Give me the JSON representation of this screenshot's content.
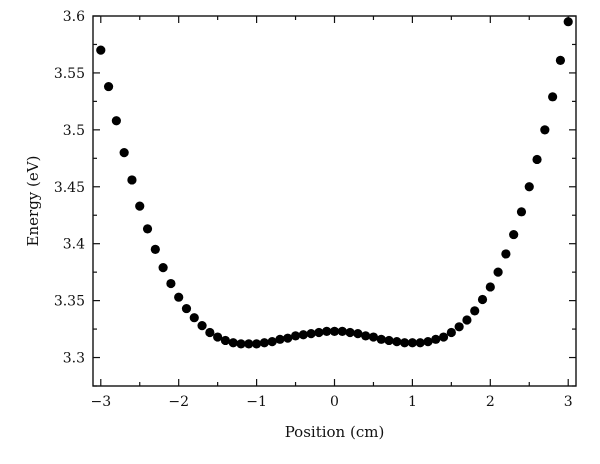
{
  "chart_data": {
    "type": "scatter",
    "xlabel": "Position (cm)",
    "ylabel": "Energy (eV)",
    "xlim": [
      -3.1,
      3.1
    ],
    "ylim": [
      3.275,
      3.6
    ],
    "x_ticks": [
      -3,
      -2,
      -1,
      0,
      1,
      2,
      3
    ],
    "x_tick_labels": [
      "−3",
      "−2",
      "−1",
      "0",
      "1",
      "2",
      "3"
    ],
    "y_ticks": [
      3.3,
      3.35,
      3.4,
      3.45,
      3.5,
      3.55,
      3.6
    ],
    "y_tick_labels": [
      "3.3",
      "3.35",
      "3.4",
      "3.45",
      "3.5",
      "3.55",
      "3.6"
    ],
    "marker_color": "#000000",
    "grid": false,
    "series": [
      {
        "x": [
          -3.0,
          -2.9,
          -2.8,
          -2.7,
          -2.6,
          -2.5,
          -2.4,
          -2.3,
          -2.2,
          -2.1,
          -2.0,
          -1.9,
          -1.8,
          -1.7,
          -1.6,
          -1.5,
          -1.4,
          -1.3,
          -1.2,
          -1.1,
          -1.0,
          -0.9,
          -0.8,
          -0.7,
          -0.6,
          -0.5,
          -0.4,
          -0.3,
          -0.2,
          -0.1,
          0.0,
          0.1,
          0.2,
          0.3,
          0.4,
          0.5,
          0.6,
          0.7,
          0.8,
          0.9,
          1.0,
          1.1,
          1.2,
          1.3,
          1.4,
          1.5,
          1.6,
          1.7,
          1.8,
          1.9,
          2.0,
          2.1,
          2.2,
          2.3,
          2.4,
          2.5,
          2.6,
          2.7,
          2.8,
          2.9,
          3.0
        ],
        "y": [
          3.57,
          3.538,
          3.508,
          3.48,
          3.456,
          3.433,
          3.413,
          3.395,
          3.379,
          3.365,
          3.353,
          3.343,
          3.335,
          3.328,
          3.322,
          3.318,
          3.315,
          3.313,
          3.312,
          3.312,
          3.312,
          3.313,
          3.314,
          3.316,
          3.317,
          3.319,
          3.32,
          3.321,
          3.322,
          3.323,
          3.323,
          3.323,
          3.322,
          3.321,
          3.319,
          3.318,
          3.316,
          3.315,
          3.314,
          3.313,
          3.313,
          3.313,
          3.314,
          3.316,
          3.318,
          3.322,
          3.327,
          3.333,
          3.341,
          3.351,
          3.362,
          3.375,
          3.391,
          3.408,
          3.428,
          3.45,
          3.474,
          3.5,
          3.529,
          3.561,
          3.595
        ]
      }
    ]
  }
}
